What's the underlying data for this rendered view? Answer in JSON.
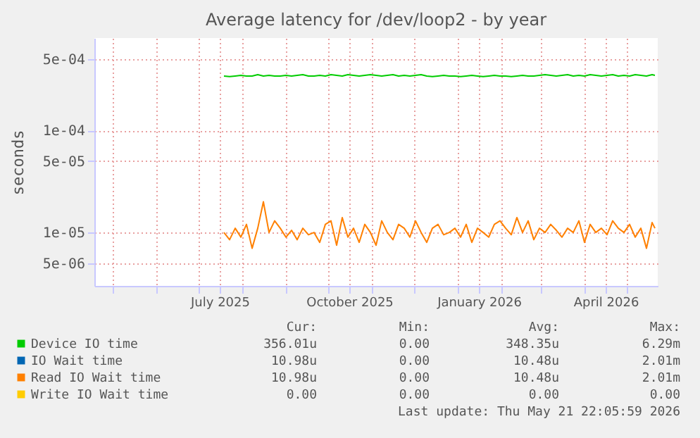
{
  "chart_data": {
    "type": "line",
    "title": "Average latency for /dev/loop2 - by year",
    "ylabel": "seconds",
    "log": true,
    "grid": true,
    "legend": "bottom",
    "ylim": [
      3e-06,
      0.0008
    ],
    "yticks": [
      {
        "value": 5e-06,
        "label": "5e-06"
      },
      {
        "value": 1e-05,
        "label": "1e-05"
      },
      {
        "value": 5e-05,
        "label": "5e-05"
      },
      {
        "value": 0.0001,
        "label": "1e-04"
      },
      {
        "value": 0.0005,
        "label": "5e-04"
      }
    ],
    "xlim": [
      "2025-04-18",
      "2026-05-23"
    ],
    "xticks": [
      {
        "value": "2025-05-01",
        "label": null
      },
      {
        "value": "2025-06-01",
        "label": null
      },
      {
        "value": "2025-07-01",
        "label": null
      },
      {
        "value": "2025-07-16",
        "label": "July 2025"
      },
      {
        "value": "2025-08-01",
        "label": null
      },
      {
        "value": "2025-09-01",
        "label": null
      },
      {
        "value": "2025-10-01",
        "label": null
      },
      {
        "value": "2025-10-16",
        "label": "October 2025"
      },
      {
        "value": "2025-11-01",
        "label": null
      },
      {
        "value": "2025-12-01",
        "label": null
      },
      {
        "value": "2026-01-01",
        "label": null
      },
      {
        "value": "2026-01-16",
        "label": "January 2026"
      },
      {
        "value": "2026-02-01",
        "label": null
      },
      {
        "value": "2026-03-01",
        "label": null
      },
      {
        "value": "2026-04-01",
        "label": null
      },
      {
        "value": "2026-04-16",
        "label": "April 2026"
      },
      {
        "value": "2026-05-01",
        "label": null
      }
    ],
    "x": [
      "2025-07-19",
      "2025-07-23",
      "2025-07-27",
      "2025-07-31",
      "2025-08-04",
      "2025-08-08",
      "2025-08-12",
      "2025-08-16",
      "2025-08-20",
      "2025-08-24",
      "2025-08-28",
      "2025-09-01",
      "2025-09-05",
      "2025-09-09",
      "2025-09-13",
      "2025-09-17",
      "2025-09-21",
      "2025-09-25",
      "2025-09-29",
      "2025-10-03",
      "2025-10-07",
      "2025-10-11",
      "2025-10-15",
      "2025-10-19",
      "2025-10-23",
      "2025-10-27",
      "2025-10-31",
      "2025-11-04",
      "2025-11-08",
      "2025-11-12",
      "2025-11-16",
      "2025-11-20",
      "2025-11-24",
      "2025-11-28",
      "2025-12-02",
      "2025-12-06",
      "2025-12-10",
      "2025-12-14",
      "2025-12-18",
      "2025-12-22",
      "2025-12-26",
      "2025-12-30",
      "2026-01-03",
      "2026-01-07",
      "2026-01-11",
      "2026-01-15",
      "2026-01-19",
      "2026-01-23",
      "2026-01-27",
      "2026-01-31",
      "2026-02-04",
      "2026-02-08",
      "2026-02-12",
      "2026-02-16",
      "2026-02-20",
      "2026-02-24",
      "2026-02-28",
      "2026-03-04",
      "2026-03-08",
      "2026-03-12",
      "2026-03-16",
      "2026-03-20",
      "2026-03-24",
      "2026-03-28",
      "2026-04-01",
      "2026-04-05",
      "2026-04-09",
      "2026-04-13",
      "2026-04-17",
      "2026-04-21",
      "2026-04-25",
      "2026-04-29",
      "2026-05-03",
      "2026-05-07",
      "2026-05-11",
      "2026-05-15",
      "2026-05-19",
      "2026-05-21"
    ],
    "series": [
      {
        "name": "Device IO time",
        "color": "#00cc00",
        "values": [
          0.00034,
          0.000335,
          0.00034,
          0.000345,
          0.00034,
          0.00034,
          0.00035,
          0.00034,
          0.000345,
          0.00034,
          0.00034,
          0.000345,
          0.00034,
          0.000345,
          0.00035,
          0.00034,
          0.00034,
          0.000345,
          0.00034,
          0.00035,
          0.000345,
          0.00034,
          0.00035,
          0.000345,
          0.00034,
          0.000345,
          0.00035,
          0.000345,
          0.00034,
          0.000345,
          0.00035,
          0.00034,
          0.000345,
          0.00034,
          0.000345,
          0.00035,
          0.00034,
          0.000335,
          0.00034,
          0.000345,
          0.00034,
          0.00034,
          0.000335,
          0.00034,
          0.000345,
          0.00034,
          0.000335,
          0.00034,
          0.000345,
          0.00034,
          0.00034,
          0.000335,
          0.00034,
          0.000345,
          0.00034,
          0.00034,
          0.000345,
          0.00035,
          0.000345,
          0.00034,
          0.000345,
          0.00035,
          0.00034,
          0.000345,
          0.00034,
          0.00035,
          0.000345,
          0.00034,
          0.000345,
          0.00035,
          0.00034,
          0.000345,
          0.00034,
          0.00035,
          0.000345,
          0.00034,
          0.00035,
          0.000345
        ]
      },
      {
        "name": "IO Wait time",
        "color": "#0066b3",
        "values": [
          null,
          null,
          null,
          null,
          null,
          null,
          null,
          null,
          null,
          null,
          null,
          null,
          null,
          null,
          null,
          null,
          null,
          null,
          null,
          null,
          null,
          null,
          null,
          null,
          null,
          null,
          null,
          null,
          null,
          null,
          null,
          null,
          null,
          null,
          null,
          null,
          null,
          null,
          null,
          null,
          null,
          null,
          null,
          null,
          null,
          null,
          null,
          null,
          null,
          null,
          null,
          null,
          null,
          null,
          null,
          null,
          null,
          null,
          null,
          null,
          null,
          null,
          null,
          null,
          null,
          null,
          null,
          null,
          null,
          null,
          null,
          null,
          null,
          null,
          null,
          null,
          null,
          null
        ]
      },
      {
        "name": "Read IO Wait time",
        "color": "#ff8000",
        "values": [
          1e-05,
          8.5e-06,
          1.1e-05,
          9e-06,
          1.2e-05,
          7e-06,
          1.1e-05,
          2e-05,
          1e-05,
          1.3e-05,
          1.1e-05,
          9e-06,
          1.05e-05,
          8.5e-06,
          1.1e-05,
          9.5e-06,
          1e-05,
          8e-06,
          1.2e-05,
          1.3e-05,
          7.5e-06,
          1.4e-05,
          9e-06,
          1.1e-05,
          8e-06,
          1.2e-05,
          1e-05,
          7.5e-06,
          1.3e-05,
          1e-05,
          8.5e-06,
          1.2e-05,
          1.1e-05,
          9e-06,
          1.3e-05,
          1e-05,
          8e-06,
          1.1e-05,
          1.2e-05,
          9.5e-06,
          1e-05,
          1.1e-05,
          9e-06,
          1.2e-05,
          8e-06,
          1.1e-05,
          1e-05,
          9e-06,
          1.2e-05,
          1.3e-05,
          1.1e-05,
          9.5e-06,
          1.4e-05,
          1e-05,
          1.3e-05,
          8.5e-06,
          1.1e-05,
          1e-05,
          1.2e-05,
          1.05e-05,
          9e-06,
          1.1e-05,
          1e-05,
          1.3e-05,
          8e-06,
          1.2e-05,
          1e-05,
          1.1e-05,
          9.5e-06,
          1.3e-05,
          1.1e-05,
          1e-05,
          1.2e-05,
          9e-06,
          1.1e-05,
          7e-06,
          1.25e-05,
          1.1e-05
        ]
      },
      {
        "name": "Write IO Wait time",
        "color": "#ffcc00",
        "values": [
          null,
          null,
          null,
          null,
          null,
          null,
          null,
          null,
          null,
          null,
          null,
          null,
          null,
          null,
          null,
          null,
          null,
          null,
          null,
          null,
          null,
          null,
          null,
          null,
          null,
          null,
          null,
          null,
          null,
          null,
          null,
          null,
          null,
          null,
          null,
          null,
          null,
          null,
          null,
          null,
          null,
          null,
          null,
          null,
          null,
          null,
          null,
          null,
          null,
          null,
          null,
          null,
          null,
          null,
          null,
          null,
          null,
          null,
          null,
          null,
          null,
          null,
          null,
          null,
          null,
          null,
          null,
          null,
          null,
          null,
          null,
          null,
          null,
          null,
          null,
          null,
          null,
          null
        ]
      }
    ],
    "annotations": [
      "Cur:",
      "Min:",
      "Avg:",
      "Max:",
      "356.01u",
      "0.00",
      "348.35u",
      "6.29m",
      "10.98u",
      "0.00",
      "10.48u",
      "2.01m",
      "10.98u",
      "0.00",
      "10.48u",
      "2.01m",
      "0.00",
      "0.00",
      "0.00",
      "0.00",
      "Last update: Thu May 21 22:05:59 2026"
    ]
  }
}
